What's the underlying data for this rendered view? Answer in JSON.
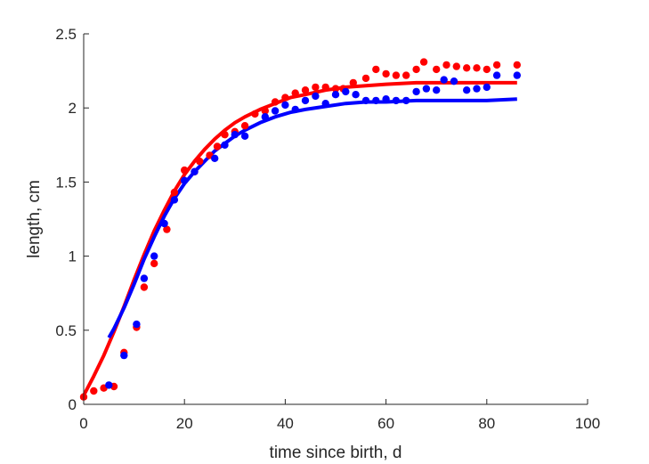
{
  "chart_data": {
    "type": "scatter",
    "xlabel": "time since birth, d",
    "ylabel": "length, cm",
    "xlim": [
      0,
      100
    ],
    "ylim": [
      0,
      2.5
    ],
    "xticks": [
      "0",
      "20",
      "40",
      "60",
      "80",
      "100"
    ],
    "yticks": [
      "0",
      "0.5",
      "1",
      "1.5",
      "2",
      "2.5"
    ],
    "grid": false,
    "series": [
      {
        "color": "#ff0000",
        "points": [
          [
            0,
            0.05
          ],
          [
            2,
            0.09
          ],
          [
            4,
            0.11
          ],
          [
            6,
            0.12
          ],
          [
            8,
            0.35
          ],
          [
            10.5,
            0.52
          ],
          [
            12,
            0.79
          ],
          [
            14,
            0.95
          ],
          [
            16.5,
            1.18
          ],
          [
            18,
            1.43
          ],
          [
            20,
            1.58
          ],
          [
            22,
            1.57
          ],
          [
            23,
            1.64
          ],
          [
            25,
            1.68
          ],
          [
            26.5,
            1.74
          ],
          [
            28,
            1.82
          ],
          [
            30,
            1.84
          ],
          [
            32,
            1.88
          ],
          [
            34,
            1.96
          ],
          [
            36,
            1.98
          ],
          [
            38,
            2.04
          ],
          [
            40,
            2.07
          ],
          [
            42,
            2.1
          ],
          [
            44,
            2.12
          ],
          [
            46,
            2.14
          ],
          [
            48,
            2.14
          ],
          [
            50,
            2.13
          ],
          [
            51.5,
            2.13
          ],
          [
            53.5,
            2.17
          ],
          [
            56,
            2.2
          ],
          [
            58,
            2.26
          ],
          [
            60,
            2.23
          ],
          [
            62,
            2.22
          ],
          [
            64,
            2.22
          ],
          [
            66,
            2.26
          ],
          [
            67.5,
            2.31
          ],
          [
            70,
            2.26
          ],
          [
            72,
            2.29
          ],
          [
            74,
            2.28
          ],
          [
            76,
            2.27
          ],
          [
            78,
            2.27
          ],
          [
            80,
            2.26
          ],
          [
            82,
            2.29
          ],
          [
            86,
            2.29
          ]
        ]
      },
      {
        "color": "#0000ff",
        "points": [
          [
            5,
            0.13
          ],
          [
            8,
            0.33
          ],
          [
            10.5,
            0.54
          ],
          [
            12,
            0.85
          ],
          [
            14,
            1.0
          ],
          [
            16,
            1.22
          ],
          [
            18,
            1.38
          ],
          [
            20,
            1.51
          ],
          [
            22,
            1.57
          ],
          [
            26,
            1.66
          ],
          [
            28,
            1.75
          ],
          [
            30,
            1.82
          ],
          [
            32,
            1.81
          ],
          [
            36,
            1.94
          ],
          [
            38,
            1.98
          ],
          [
            40,
            2.02
          ],
          [
            42,
            1.99
          ],
          [
            44,
            2.05
          ],
          [
            46,
            2.08
          ],
          [
            48,
            2.03
          ],
          [
            50,
            2.09
          ],
          [
            52,
            2.11
          ],
          [
            54,
            2.09
          ],
          [
            56,
            2.05
          ],
          [
            58,
            2.05
          ],
          [
            60,
            2.06
          ],
          [
            62,
            2.05
          ],
          [
            64,
            2.05
          ],
          [
            66,
            2.11
          ],
          [
            68,
            2.13
          ],
          [
            70,
            2.12
          ],
          [
            71.5,
            2.19
          ],
          [
            73.5,
            2.18
          ],
          [
            76,
            2.12
          ],
          [
            78,
            2.13
          ],
          [
            80,
            2.14
          ],
          [
            82,
            2.22
          ],
          [
            86,
            2.22
          ]
        ]
      }
    ],
    "fits": [
      {
        "color": "#ff0000",
        "points": [
          [
            0,
            0.06
          ],
          [
            2,
            0.19
          ],
          [
            4,
            0.33
          ],
          [
            6,
            0.49
          ],
          [
            8,
            0.66
          ],
          [
            10,
            0.84
          ],
          [
            12,
            1.01
          ],
          [
            14,
            1.17
          ],
          [
            16,
            1.31
          ],
          [
            18,
            1.44
          ],
          [
            20,
            1.55
          ],
          [
            22,
            1.64
          ],
          [
            24,
            1.72
          ],
          [
            26,
            1.79
          ],
          [
            28,
            1.85
          ],
          [
            30,
            1.9
          ],
          [
            32,
            1.94
          ],
          [
            35,
            1.99
          ],
          [
            38,
            2.03
          ],
          [
            41,
            2.07
          ],
          [
            44,
            2.09
          ],
          [
            48,
            2.12
          ],
          [
            52,
            2.14
          ],
          [
            56,
            2.15
          ],
          [
            60,
            2.16
          ],
          [
            66,
            2.17
          ],
          [
            72,
            2.17
          ],
          [
            80,
            2.17
          ],
          [
            86,
            2.17
          ]
        ]
      },
      {
        "color": "#0000ff",
        "points": [
          [
            5,
            0.45
          ],
          [
            6,
            0.51
          ],
          [
            8,
            0.65
          ],
          [
            10,
            0.81
          ],
          [
            12,
            0.98
          ],
          [
            14,
            1.13
          ],
          [
            16,
            1.27
          ],
          [
            18,
            1.39
          ],
          [
            20,
            1.49
          ],
          [
            22,
            1.57
          ],
          [
            24,
            1.64
          ],
          [
            26,
            1.71
          ],
          [
            28,
            1.76
          ],
          [
            30,
            1.81
          ],
          [
            32,
            1.85
          ],
          [
            35,
            1.9
          ],
          [
            38,
            1.94
          ],
          [
            41,
            1.97
          ],
          [
            44,
            1.99
          ],
          [
            48,
            2.01
          ],
          [
            52,
            2.03
          ],
          [
            56,
            2.04
          ],
          [
            60,
            2.04
          ],
          [
            66,
            2.05
          ],
          [
            72,
            2.05
          ],
          [
            80,
            2.05
          ],
          [
            86,
            2.06
          ]
        ]
      }
    ]
  }
}
